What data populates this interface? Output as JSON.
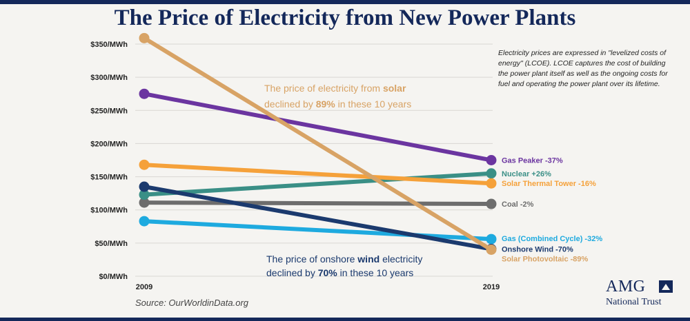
{
  "title": "The Price of Electricity from New Power Plants",
  "note": "Electricity prices are expressed in \"levelized costs of energy\" (LCOE). LCOE captures the cost of building the power plant itself as well as the ongoing costs for fuel and operating the power plant over its lifetime.",
  "source": "Source: OurWorldinData.org",
  "logo": {
    "name": "AMG",
    "subtitle": "National Trust"
  },
  "annotations": {
    "solar": {
      "line1_a": "The price of electricity from ",
      "line1_b": "solar",
      "line2_a": "declined by ",
      "line2_b": "89%",
      "line2_c": " in these 10 years",
      "color": "#d8a365"
    },
    "wind": {
      "line1_a": "The price of onshore ",
      "line1_b": "wind",
      "line1_c": " electricity",
      "line2_a": "declined by ",
      "line2_b": "70%",
      "line2_c": " in these 10 years",
      "color": "#1b3a6e"
    }
  },
  "chart_data": {
    "type": "line",
    "x": [
      "2009",
      "2019"
    ],
    "ylim": [
      0,
      350
    ],
    "yticks": [
      {
        "value": 0,
        "label": "$0/MWh"
      },
      {
        "value": 50,
        "label": "$50/MWh"
      },
      {
        "value": 100,
        "label": "$100/MWh"
      },
      {
        "value": 150,
        "label": "$150/MWh"
      },
      {
        "value": 200,
        "label": "$200/MWh"
      },
      {
        "value": 250,
        "label": "$250/MWh"
      },
      {
        "value": 300,
        "label": "$300/MWh"
      },
      {
        "value": 350,
        "label": "$350/MWh"
      }
    ],
    "series": [
      {
        "key": "coal",
        "label": "Coal -2%",
        "values": [
          111,
          109
        ],
        "color": "#6d6d6d"
      },
      {
        "key": "nuclear",
        "label": "Nuclear +26%",
        "values": [
          123,
          155
        ],
        "color": "#3a8f86"
      },
      {
        "key": "solar_thermal",
        "label": "Solar Thermal Tower -16%",
        "values": [
          168,
          140
        ],
        "color": "#f5a13a"
      },
      {
        "key": "gas_cc",
        "label": "Gas (Combined Cycle) -32%",
        "values": [
          83,
          56
        ],
        "color": "#1eaadf"
      },
      {
        "key": "gas_peaker",
        "label": "Gas Peaker -37%",
        "values": [
          275,
          175
        ],
        "color": "#6b35a0"
      },
      {
        "key": "onshore_wind",
        "label": "Onshore Wind -70%",
        "values": [
          135,
          41
        ],
        "color": "#1b3a6e"
      },
      {
        "key": "solar_pv",
        "label": "Solar Photovoltaic -89%",
        "values": [
          359,
          40
        ],
        "color": "#d8a365"
      }
    ]
  }
}
